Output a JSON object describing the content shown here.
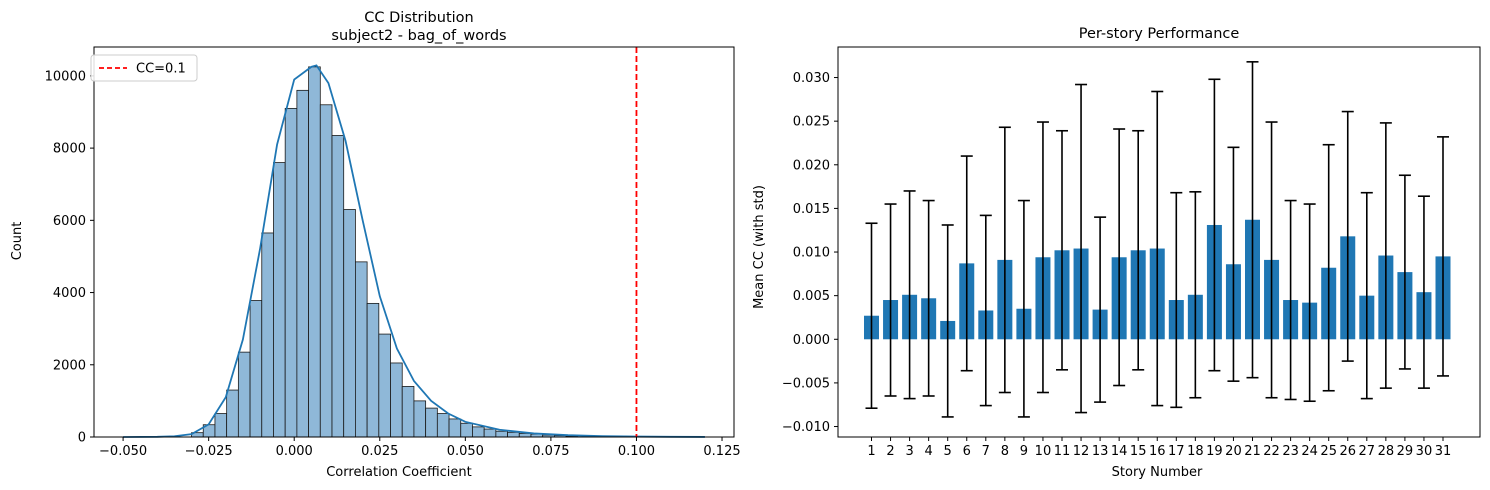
{
  "chart_data": [
    {
      "type": "bar",
      "subtype": "histogram-with-kde",
      "title": "CC Distribution",
      "subtitle": "subject2 - bag_of_words",
      "xlabel": "Correlation Coefficient",
      "ylabel": "Count",
      "xlim": [
        -0.0585,
        0.1285
      ],
      "ylim": [
        0,
        10800
      ],
      "xticks": [
        -0.05,
        -0.025,
        0.0,
        0.025,
        0.05,
        0.075,
        0.1,
        0.125
      ],
      "xtick_labels": [
        "−0.050",
        "−0.025",
        "0.000",
        "0.025",
        "0.050",
        "0.075",
        "0.100",
        "0.125"
      ],
      "yticks": [
        0,
        2000,
        4000,
        6000,
        8000,
        10000
      ],
      "ytick_labels": [
        "0",
        "2000",
        "4000",
        "6000",
        "8000",
        "10000"
      ],
      "bin_width": 0.00342,
      "bin_starts": [
        -0.03,
        -0.02658,
        -0.02316,
        -0.01974,
        -0.01632,
        -0.0129,
        -0.00948,
        -0.00606,
        -0.00264,
        0.00078,
        0.0042,
        0.00762,
        0.01104,
        0.01446,
        0.01788,
        0.0213,
        0.02472,
        0.02814,
        0.03156,
        0.03498,
        0.0384,
        0.04182,
        0.04524,
        0.04866,
        0.05208,
        0.0555,
        0.05892,
        0.06234,
        0.06576,
        0.06918,
        0.0726,
        0.07602,
        0.07944
      ],
      "values": [
        120,
        340,
        650,
        1300,
        2350,
        3780,
        5650,
        7600,
        9100,
        9600,
        10250,
        9200,
        8350,
        6300,
        4850,
        3700,
        2850,
        2050,
        1400,
        1000,
        800,
        650,
        500,
        380,
        280,
        220,
        160,
        130,
        100,
        80,
        55,
        40,
        25
      ],
      "kde": {
        "x": [
          -0.05,
          -0.04,
          -0.035,
          -0.03,
          -0.025,
          -0.02,
          -0.015,
          -0.01,
          -0.005,
          0.0,
          0.005,
          0.0065,
          0.01,
          0.015,
          0.02,
          0.025,
          0.03,
          0.035,
          0.04,
          0.045,
          0.05,
          0.06,
          0.07,
          0.08,
          0.09,
          0.1,
          0.11,
          0.12
        ],
        "y": [
          0,
          5,
          20,
          80,
          350,
          1100,
          2700,
          5200,
          8100,
          9900,
          10250,
          10290,
          9800,
          8200,
          6000,
          3900,
          2450,
          1550,
          1000,
          650,
          420,
          200,
          100,
          50,
          25,
          12,
          5,
          2
        ]
      },
      "reference_line": {
        "x": 0.1,
        "label": "CC=0.1",
        "color": "#ff0000",
        "style": "dashed"
      },
      "bar_color": "#8fb8d8",
      "line_color": "#1f77b4",
      "legend_placement": "top-left",
      "grid": false
    },
    {
      "type": "bar",
      "subtype": "bar-with-error-bars",
      "title": "Per-story Performance",
      "xlabel": "Story Number",
      "ylabel": "Mean CC (with std)",
      "ylim": [
        -0.0112,
        0.0335
      ],
      "yticks": [
        -0.01,
        -0.005,
        0.0,
        0.005,
        0.01,
        0.015,
        0.02,
        0.025,
        0.03
      ],
      "ytick_labels": [
        "−0.010",
        "−0.005",
        "0.000",
        "0.005",
        "0.010",
        "0.015",
        "0.020",
        "0.025",
        "0.030"
      ],
      "categories": [
        "1",
        "2",
        "3",
        "4",
        "5",
        "6",
        "7",
        "8",
        "9",
        "10",
        "11",
        "12",
        "13",
        "14",
        "15",
        "16",
        "17",
        "18",
        "19",
        "20",
        "21",
        "22",
        "23",
        "24",
        "25",
        "26",
        "27",
        "28",
        "29",
        "30",
        "31"
      ],
      "values": [
        0.0027,
        0.0045,
        0.0051,
        0.0047,
        0.0021,
        0.0087,
        0.0033,
        0.0091,
        0.0035,
        0.0094,
        0.0102,
        0.0104,
        0.0034,
        0.0094,
        0.0102,
        0.0104,
        0.0045,
        0.0051,
        0.0131,
        0.0086,
        0.0137,
        0.0091,
        0.0045,
        0.0042,
        0.0082,
        0.0118,
        0.005,
        0.0096,
        0.0077,
        0.0054,
        0.0095
      ],
      "errors": [
        0.0106,
        0.011,
        0.0119,
        0.0112,
        0.011,
        0.0123,
        0.0109,
        0.0152,
        0.0124,
        0.0155,
        0.0137,
        0.0188,
        0.0106,
        0.0147,
        0.0137,
        0.018,
        0.0123,
        0.0118,
        0.0167,
        0.0134,
        0.0181,
        0.0158,
        0.0114,
        0.0113,
        0.0141,
        0.0143,
        0.0118,
        0.0152,
        0.0111,
        0.011,
        0.0137
      ],
      "bar_color": "#1f77b4",
      "error_color": "#000000",
      "grid": false
    }
  ]
}
